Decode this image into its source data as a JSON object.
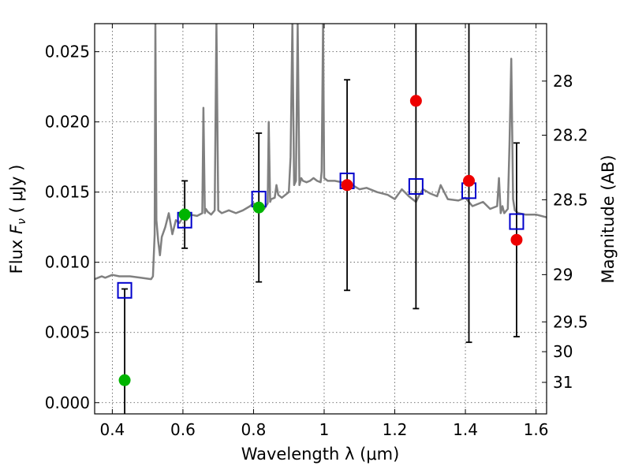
{
  "chart_data": {
    "type": "scatter",
    "xlabel": "Wavelength  λ (μm)",
    "ylabel": "Flux  F_ν  ( μJy )",
    "ylabel_parts": {
      "prefix": "Flux  ",
      "symbol": "F",
      "subscript": "ν",
      "suffix": "  ( μJy )"
    },
    "y2label": "Magnitude (AB)",
    "xlim": [
      0.35,
      1.63
    ],
    "ylim": [
      -0.0008,
      0.027
    ],
    "xticks": [
      0.4,
      0.6,
      0.8,
      1.0,
      1.2,
      1.4,
      1.6
    ],
    "xtick_labels": [
      "0.4",
      "0.6",
      "0.8",
      "1",
      "1.2",
      "1.4",
      "1.6"
    ],
    "yticks": [
      0.0,
      0.005,
      0.01,
      0.015,
      0.02,
      0.025
    ],
    "ytick_labels": [
      "0.000",
      "0.005",
      "0.010",
      "0.015",
      "0.020",
      "0.025"
    ],
    "y2ticks": [
      {
        "mag": 28,
        "label": "28"
      },
      {
        "mag": 28.2,
        "label": "28.2"
      },
      {
        "mag": 28.5,
        "label": "28.5"
      },
      {
        "mag": 29,
        "label": "29"
      },
      {
        "mag": 29.5,
        "label": "29.5"
      },
      {
        "mag": 30,
        "label": "30"
      },
      {
        "mag": 31,
        "label": "31"
      }
    ],
    "grid": true,
    "colors": {
      "model": "#808080",
      "model_points": "#0000cc",
      "hst_points": "#00b400",
      "ir_points": "#ee0000",
      "errorbars": "#000000"
    },
    "model_spectrum": {
      "x": [
        0.35,
        0.37,
        0.38,
        0.4,
        0.42,
        0.45,
        0.48,
        0.51,
        0.515,
        0.52,
        0.522,
        0.525,
        0.53,
        0.535,
        0.54,
        0.55,
        0.56,
        0.57,
        0.58,
        0.59,
        0.6,
        0.61,
        0.62,
        0.64,
        0.655,
        0.658,
        0.662,
        0.665,
        0.67,
        0.68,
        0.69,
        0.695,
        0.7,
        0.705,
        0.71,
        0.73,
        0.75,
        0.77,
        0.79,
        0.8,
        0.81,
        0.83,
        0.84,
        0.843,
        0.847,
        0.85,
        0.86,
        0.865,
        0.87,
        0.88,
        0.9,
        0.905,
        0.91,
        0.915,
        0.92,
        0.925,
        0.93,
        0.935,
        0.94,
        0.95,
        0.96,
        0.97,
        0.98,
        0.99,
        0.993,
        0.997,
        1.0,
        1.01,
        1.03,
        1.05,
        1.08,
        1.1,
        1.12,
        1.15,
        1.18,
        1.2,
        1.22,
        1.24,
        1.25,
        1.26,
        1.27,
        1.28,
        1.3,
        1.32,
        1.33,
        1.35,
        1.38,
        1.4,
        1.42,
        1.45,
        1.47,
        1.49,
        1.495,
        1.5,
        1.505,
        1.51,
        1.52,
        1.525,
        1.53,
        1.535,
        1.54,
        1.55,
        1.57,
        1.6,
        1.63
      ],
      "y": [
        0.0088,
        0.009,
        0.0089,
        0.0091,
        0.009,
        0.009,
        0.0089,
        0.0088,
        0.009,
        0.012,
        0.027,
        0.013,
        0.0115,
        0.0105,
        0.0118,
        0.0125,
        0.0135,
        0.012,
        0.013,
        0.0128,
        0.0132,
        0.013,
        0.0134,
        0.0133,
        0.0135,
        0.021,
        0.0135,
        0.0138,
        0.0136,
        0.0134,
        0.0137,
        0.027,
        0.0137,
        0.0136,
        0.0135,
        0.0137,
        0.0135,
        0.0137,
        0.014,
        0.0142,
        0.014,
        0.0138,
        0.0142,
        0.02,
        0.0143,
        0.0145,
        0.0146,
        0.0155,
        0.0148,
        0.0146,
        0.015,
        0.0175,
        0.027,
        0.0155,
        0.0158,
        0.027,
        0.0155,
        0.016,
        0.0158,
        0.0157,
        0.0158,
        0.016,
        0.0158,
        0.0157,
        0.0165,
        0.027,
        0.016,
        0.0158,
        0.0158,
        0.0157,
        0.0155,
        0.0152,
        0.0153,
        0.015,
        0.0148,
        0.0145,
        0.0152,
        0.0147,
        0.0145,
        0.0143,
        0.0148,
        0.0152,
        0.0149,
        0.0147,
        0.0155,
        0.0145,
        0.0144,
        0.0146,
        0.014,
        0.0143,
        0.0138,
        0.014,
        0.016,
        0.0135,
        0.014,
        0.0135,
        0.0138,
        0.0185,
        0.0245,
        0.0145,
        0.0137,
        0.0135,
        0.0134,
        0.0134,
        0.0132
      ]
    },
    "model_points": {
      "x": [
        0.435,
        0.605,
        0.815,
        1.065,
        1.26,
        1.41,
        1.545
      ],
      "y": [
        0.008,
        0.013,
        0.0145,
        0.0158,
        0.0154,
        0.0151,
        0.0129
      ]
    },
    "hst_points": {
      "x": [
        0.435,
        0.605,
        0.815
      ],
      "y": [
        0.0016,
        0.0134,
        0.0139
      ],
      "err": [
        0.0065,
        0.0024,
        0.0053
      ]
    },
    "ir_points": {
      "x": [
        1.065,
        1.26,
        1.41,
        1.545
      ],
      "y": [
        0.0155,
        0.0215,
        0.0158,
        0.0116
      ],
      "err": [
        0.0075,
        0.0148,
        0.0115,
        0.0069
      ]
    }
  }
}
